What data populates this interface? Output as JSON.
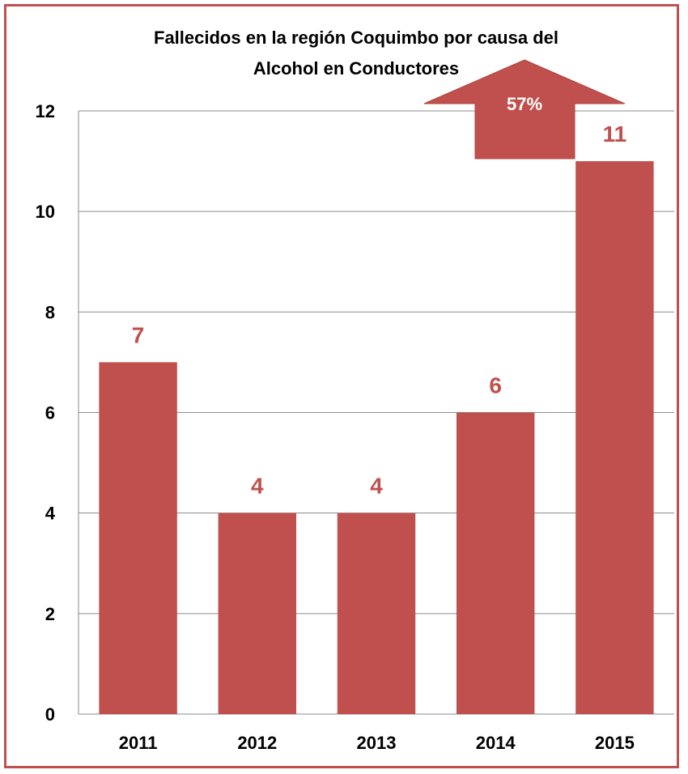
{
  "chart_data": {
    "type": "bar",
    "title_lines": [
      "Fallecidos en la región Coquimbo por causa del",
      "Alcohol en Conductores"
    ],
    "categories": [
      "2011",
      "2012",
      "2013",
      "2014",
      "2015"
    ],
    "values": [
      7,
      4,
      4,
      6,
      11
    ],
    "data_labels": [
      "7",
      "4",
      "4",
      "6",
      "11"
    ],
    "xlabel": "",
    "ylabel": "",
    "ylim": [
      0,
      12
    ],
    "yticks": [
      "0",
      "2",
      "4",
      "6",
      "8",
      "10",
      "12"
    ],
    "grid": true,
    "legend": "none",
    "annotation": "57%",
    "colors": {
      "bar": "#c0504d",
      "label": "#c0504d",
      "grid": "#8c8c8c",
      "frame": "#c0504d"
    }
  }
}
